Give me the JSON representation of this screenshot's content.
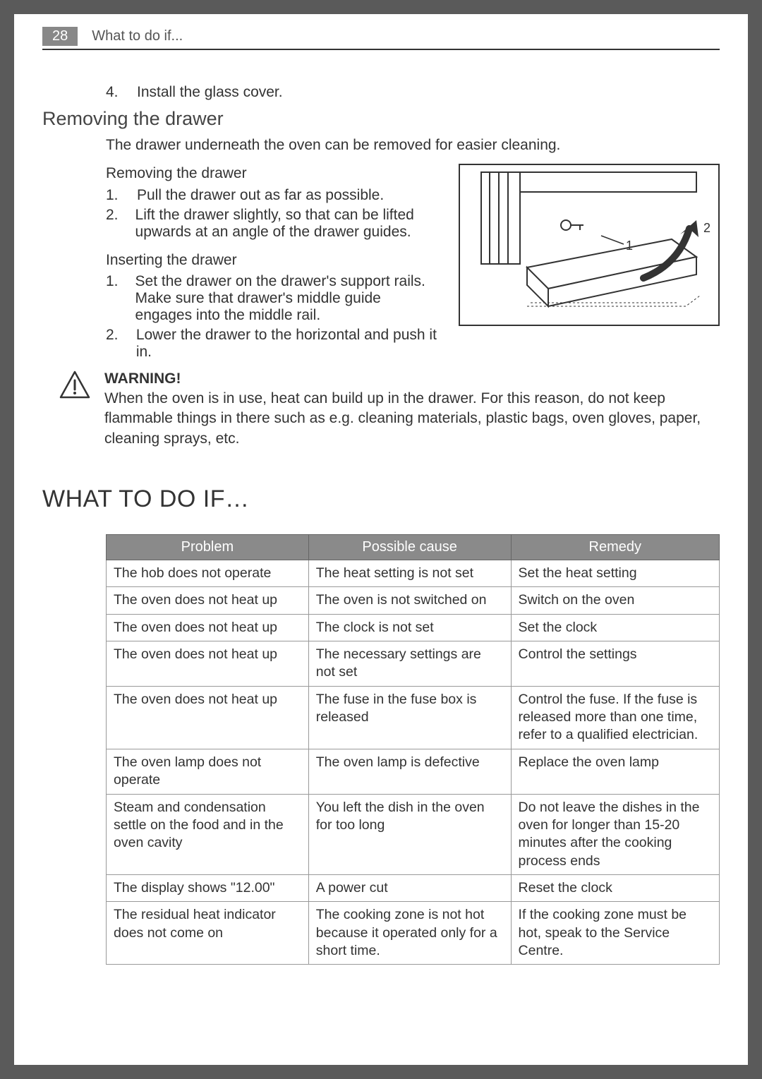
{
  "header": {
    "page_number": "28",
    "section_title": "What to do if..."
  },
  "intro_step": {
    "num": "4.",
    "text": "Install the glass cover."
  },
  "removing_drawer": {
    "title": "Removing the drawer",
    "intro": "The drawer underneath the oven can be removed for easier cleaning.",
    "sub1_title": "Removing the drawer",
    "sub1_steps": [
      {
        "num": "1.",
        "text": "Pull the drawer out as far as possible."
      },
      {
        "num": "2.",
        "text": "Lift the drawer slightly, so that can be lifted upwards at an angle of the drawer guides."
      }
    ],
    "sub2_title": "Inserting the drawer",
    "sub2_steps": [
      {
        "num": "1.",
        "text": "Set the drawer on the drawer's support rails. Make sure that drawer's middle guide engages into the middle rail."
      },
      {
        "num": "2.",
        "text": "Lower the drawer to the horizontal and push it in."
      }
    ]
  },
  "diagram": {
    "label1": "1",
    "label2": "2"
  },
  "warning": {
    "title": "WARNING!",
    "text": "When the oven is in use, heat can build up in the drawer. For this reason, do not keep flammable things in there such as e.g. cleaning materials, plastic bags, oven gloves, paper, cleaning sprays, etc."
  },
  "troubleshoot": {
    "title": "WHAT TO DO IF…",
    "headers": {
      "c1": "Problem",
      "c2": "Possible cause",
      "c3": "Remedy"
    },
    "rows": [
      {
        "p": "The hob does not operate",
        "c": "The heat setting is not set",
        "r": "Set the heat setting"
      },
      {
        "p": "The oven does not heat up",
        "c": "The oven is not switched on",
        "r": "Switch on the oven"
      },
      {
        "p": "The oven does not heat up",
        "c": "The clock is not set",
        "r": "Set the clock"
      },
      {
        "p": "The oven does not heat up",
        "c": "The necessary settings are not set",
        "r": "Control the settings"
      },
      {
        "p": "The oven does not heat up",
        "c": "The fuse in the fuse box is released",
        "r": "Control the fuse. If the fuse is released more than one time, refer to a qualified electrician."
      },
      {
        "p": "The oven lamp does not operate",
        "c": "The oven lamp is defective",
        "r": "Replace the oven lamp"
      },
      {
        "p": "Steam and condensation settle on the food and in the oven cavity",
        "c": "You left the dish in the oven for too long",
        "r": "Do not leave the dishes in the oven for longer than 15-20 minutes after the cooking process ends"
      },
      {
        "p": "The display shows \"12.00\"",
        "c": "A power cut",
        "r": "Reset the clock"
      },
      {
        "p": "The residual heat indicator does not come on",
        "c": "The cooking zone is not hot because it operated only for a short time.",
        "r": "If the cooking zone must be hot, speak to the Service Centre."
      }
    ]
  },
  "colors": {
    "header_bg": "#8a8a8a",
    "border": "#999999",
    "text": "#333333"
  }
}
